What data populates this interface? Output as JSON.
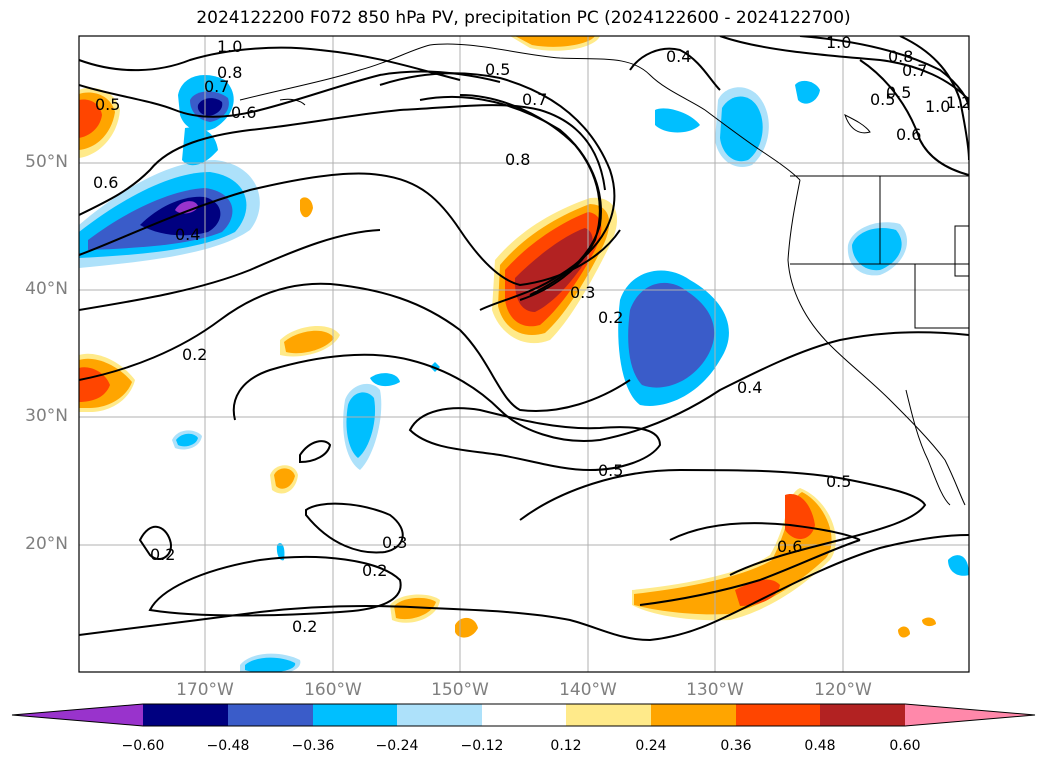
{
  "title": "2024122200 F072 850 hPa PV, precipitation PC (2024122600 - 2024122700)",
  "lat_labels": [
    "50°N",
    "40°N",
    "30°N",
    "20°N"
  ],
  "lon_labels": [
    "170°W",
    "160°W",
    "150°W",
    "140°W",
    "130°W",
    "120°W"
  ],
  "contour_labels": [
    "1.0",
    "0.8",
    "0.7",
    "0.6",
    "0.5",
    "0.6",
    "0.4",
    "0.5",
    "0.7",
    "0.8",
    "0.3",
    "0.2",
    "0.4",
    "0.2",
    "0.5",
    "0.5",
    "0.6",
    "0.3",
    "0.2",
    "0.2",
    "0.2",
    "0.4",
    "1.0",
    "0.8",
    "0.7",
    "0.5",
    "1.0",
    "1.2",
    "0.6",
    "0.5"
  ],
  "colorbar": {
    "ticks": [
      "−0.60",
      "−0.48",
      "−0.36",
      "−0.24",
      "−0.12",
      "0.12",
      "0.24",
      "0.36",
      "0.48",
      "0.60"
    ],
    "colors": [
      "#9933cc",
      "#000080",
      "#3a5cc9",
      "#00bfff",
      "#ade1fa",
      "#ffffff",
      "#ffea8a",
      "#ffa500",
      "#ff4500",
      "#b22222",
      "#ff88aa"
    ]
  }
}
